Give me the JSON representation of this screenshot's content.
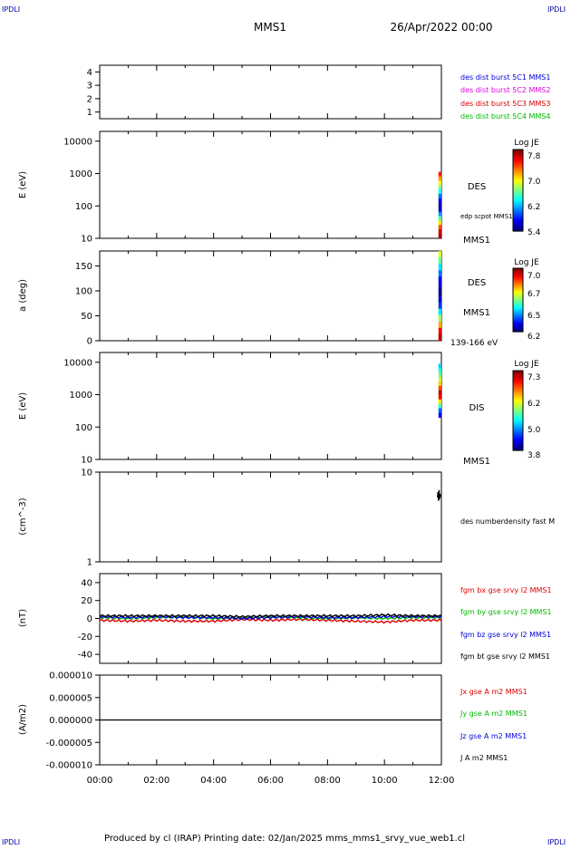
{
  "header": {
    "corner_left": "IPDLI",
    "corner_right": "IPDLI",
    "title": "MMS1",
    "date": "26/Apr/2022 00:00"
  },
  "footer": {
    "text": "Produced by cl (IRAP)   Printing date: 02/Jan/2025   mms_mms1_srvy_vue_web1.cl",
    "corner_left": "IPDLI",
    "corner_right": "IPDLI"
  },
  "colors": {
    "blue": "#0000dd",
    "magenta": "#dd00dd",
    "red": "#dd0000",
    "green": "#00bb00",
    "black": "#000000"
  },
  "chart_data": [
    {
      "type": "line",
      "panel": "burst-intervals",
      "ylim": [
        0.5,
        4.5
      ],
      "yticks": [
        1,
        2,
        3,
        4
      ],
      "ytick_labels": [
        "1",
        "2",
        "3",
        "4"
      ],
      "series": [
        {
          "name": "des dist burst 5C1 MMS1",
          "color": "#0000dd",
          "values": []
        },
        {
          "name": "des dist burst 5C2 MMS2",
          "color": "#dd00dd",
          "values": []
        },
        {
          "name": "des dist burst 5C3 MMS3",
          "color": "#dd0000",
          "values": []
        },
        {
          "name": "des dist burst 5C4 MMS4",
          "color": "#00bb00",
          "values": []
        }
      ]
    },
    {
      "type": "heatmap",
      "panel": "des-energy",
      "ylabel": "E (eV)",
      "yscale": "log",
      "ylim": [
        10,
        20000
      ],
      "yticks": [
        10,
        100,
        1000,
        10000
      ],
      "ytick_labels": [
        "10",
        "100",
        "1000",
        "10000"
      ],
      "label": "DES",
      "sub_label": "edp scpot MMS1",
      "spacecraft": "MMS1",
      "colorbar": {
        "title": "Log JE",
        "range": [
          5.4,
          8.0
        ],
        "ticks": [
          "7.8",
          "7.0",
          "6.2",
          "5.4"
        ]
      },
      "data_x_range": [
        "11:50",
        "12:00"
      ],
      "columns_top_to_bottom": [
        7.6,
        7.3,
        7.0,
        6.7,
        6.4,
        6.0,
        5.7,
        5.5,
        5.6,
        6.1,
        6.6,
        7.1,
        7.5,
        7.8,
        7.9
      ]
    },
    {
      "type": "heatmap",
      "panel": "des-pitch-angle",
      "ylabel": "a (deg)",
      "ylim": [
        0,
        180
      ],
      "yticks": [
        0,
        50,
        100,
        150
      ],
      "ytick_labels": [
        "0",
        "50",
        "100",
        "150"
      ],
      "label": "DES",
      "spacecraft": "MMS1",
      "energy_range": "139-166 eV",
      "colorbar": {
        "title": "Log JE",
        "range": [
          6.2,
          7.05
        ],
        "ticks": [
          "7.0",
          "6.7",
          "6.5",
          "6.2"
        ]
      },
      "data_x_range": [
        "11:50",
        "12:00"
      ],
      "columns_top_to_bottom": [
        6.7,
        6.6,
        6.5,
        6.4,
        6.3,
        6.25,
        6.2,
        6.25,
        6.35,
        6.5,
        6.65,
        6.8,
        6.95,
        7.0
      ]
    },
    {
      "type": "heatmap",
      "panel": "dis-energy",
      "ylabel": "E (eV)",
      "yscale": "log",
      "ylim": [
        10,
        20000
      ],
      "yticks": [
        10,
        100,
        1000,
        10000
      ],
      "ytick_labels": [
        "10",
        "100",
        "1000",
        "10000"
      ],
      "label": "DIS",
      "spacecraft": "MMS1",
      "colorbar": {
        "title": "Log JE",
        "range": [
          3.8,
          7.5
        ],
        "ticks": [
          "7.3",
          "6.2",
          "5.0",
          "3.8"
        ]
      },
      "data_x_range": [
        "11:50",
        "12:00"
      ],
      "columns_top_to_bottom": [
        5.0,
        5.3,
        5.6,
        5.9,
        6.3,
        6.8,
        7.3,
        7.0,
        6.2,
        5.4,
        4.6,
        4.2
      ]
    },
    {
      "type": "line",
      "panel": "density",
      "ylabel": "(cm^-3)",
      "yscale": "log",
      "ylim": [
        1,
        10
      ],
      "yticks": [
        1,
        10
      ],
      "ytick_labels": [
        "1",
        "10"
      ],
      "series": [
        {
          "name": "des numberdensity fast M",
          "color": "#000000",
          "x": [
            "11:52",
            "11:53",
            "11:54",
            "11:55",
            "11:56",
            "11:57",
            "11:58"
          ],
          "values": [
            5.2,
            6.0,
            4.8,
            6.3,
            5.0,
            5.7,
            5.3
          ]
        }
      ]
    },
    {
      "type": "line",
      "panel": "magnetic-field",
      "ylabel": "(nT)",
      "ylim": [
        -50,
        50
      ],
      "yticks": [
        -40,
        -20,
        0,
        20,
        40
      ],
      "ytick_labels": [
        "-40",
        "-20",
        "0",
        "20",
        "40"
      ],
      "series": [
        {
          "name": "fgm bx gse srvy l2 MMS1",
          "color": "#dd0000",
          "x": [
            "00:00",
            "01:00",
            "02:00",
            "03:00",
            "04:00",
            "05:00",
            "06:00",
            "07:00",
            "08:00",
            "09:00",
            "10:00",
            "11:00",
            "12:00"
          ],
          "values": [
            -2,
            -3,
            -2,
            -3,
            -3,
            -1,
            -2,
            -1,
            -2,
            -3,
            -4,
            -2,
            -2
          ]
        },
        {
          "name": "fgm by gse srvy l2 MMS1",
          "color": "#00bb00",
          "x": [
            "00:00",
            "01:00",
            "02:00",
            "03:00",
            "04:00",
            "05:00",
            "06:00",
            "07:00",
            "08:00",
            "09:00",
            "10:00",
            "11:00",
            "12:00"
          ],
          "values": [
            1,
            0,
            1,
            2,
            0,
            1,
            2,
            1,
            0,
            1,
            0,
            1,
            1
          ]
        },
        {
          "name": "fgm bz gse srvy l2 MMS1",
          "color": "#0000dd",
          "x": [
            "00:00",
            "01:00",
            "02:00",
            "03:00",
            "04:00",
            "05:00",
            "06:00",
            "07:00",
            "08:00",
            "09:00",
            "10:00",
            "11:00",
            "12:00"
          ],
          "values": [
            2,
            1,
            2,
            1,
            1,
            0,
            1,
            2,
            1,
            1,
            2,
            2,
            2
          ]
        },
        {
          "name": "fgm bt gse srvy l2 MMS1",
          "color": "#000000",
          "x": [
            "00:00",
            "01:00",
            "02:00",
            "03:00",
            "04:00",
            "05:00",
            "06:00",
            "07:00",
            "08:00",
            "09:00",
            "10:00",
            "11:00",
            "12:00"
          ],
          "values": [
            3,
            3,
            3,
            3,
            3,
            2,
            3,
            3,
            3,
            3,
            4,
            3,
            3
          ]
        }
      ]
    },
    {
      "type": "line",
      "panel": "current-density",
      "ylabel": "(A/m2)",
      "ylim": [
        -1e-05,
        1e-05
      ],
      "yticks": [
        -1e-05,
        -5e-06,
        0,
        5e-06,
        1e-05
      ],
      "ytick_labels": [
        "-0.000010",
        "-0.000005",
        "0.000000",
        "0.000005",
        "0.000010"
      ],
      "xticks": [
        "00:00",
        "02:00",
        "04:00",
        "06:00",
        "08:00",
        "10:00",
        "12:00"
      ],
      "series": [
        {
          "name": "Jx gse A m2 MMS1",
          "color": "#dd0000",
          "values": []
        },
        {
          "name": "Jy gse A m2 MMS1",
          "color": "#00bb00",
          "values": []
        },
        {
          "name": "Jz gse A m2 MMS1",
          "color": "#0000dd",
          "values": []
        },
        {
          "name": "J A m2 MMS1",
          "color": "#000000",
          "x": [
            "00:00",
            "02:00",
            "04:00",
            "06:00",
            "08:00",
            "10:00",
            "12:00"
          ],
          "values": [
            0,
            0,
            0,
            0,
            0,
            0,
            0
          ]
        }
      ]
    }
  ]
}
